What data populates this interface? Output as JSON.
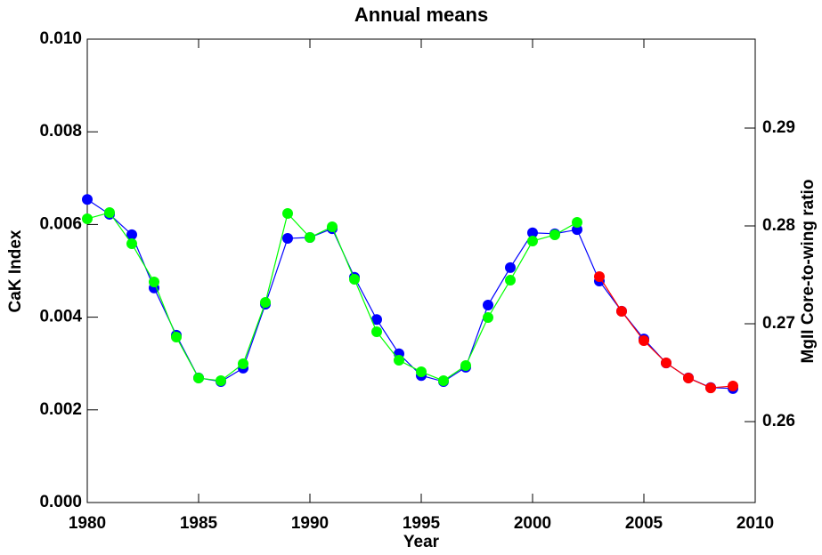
{
  "chart_data": {
    "type": "line",
    "title": "Annual means",
    "xlabel": "Year",
    "ylabel": "CaK Index",
    "y2label": "MgII Core-to-wing ratio",
    "x": [
      1980,
      1981,
      1982,
      1983,
      1984,
      1985,
      1986,
      1987,
      1988,
      1989,
      1990,
      1991,
      1992,
      1993,
      1994,
      1995,
      1996,
      1997,
      1998,
      1999,
      2000,
      2001,
      2002,
      2003,
      2004,
      2005,
      2006,
      2007,
      2008,
      2009
    ],
    "series": [
      {
        "color": "#0000ff",
        "values": [
          0.00654,
          0.00622,
          0.00578,
          0.00463,
          0.00361,
          0.00269,
          0.00261,
          0.0029,
          0.00428,
          0.0057,
          0.00572,
          0.00591,
          0.00486,
          0.00395,
          0.00321,
          0.00274,
          0.00261,
          0.00292,
          0.00426,
          0.00507,
          0.00582,
          0.0058,
          0.00589,
          0.00478,
          0.00413,
          0.00353,
          0.00301,
          0.00269,
          0.00248,
          0.00246
        ]
      },
      {
        "color": "#00ff00",
        "axis": "y2",
        "values": [
          0.28073,
          0.28136,
          0.27818,
          0.27427,
          0.26864,
          0.26445,
          0.26418,
          0.26591,
          0.27218,
          0.28127,
          0.27882,
          0.27991,
          0.27455,
          0.26918,
          0.26627,
          0.26509,
          0.26418,
          0.26573,
          0.27064,
          0.27445,
          0.27845,
          0.27909,
          0.28036,
          null,
          null,
          null,
          null,
          null,
          null,
          null
        ]
      },
      {
        "color": "#ff0000",
        "axis": "y2",
        "values": [
          null,
          null,
          null,
          null,
          null,
          null,
          null,
          null,
          null,
          null,
          null,
          null,
          null,
          null,
          null,
          null,
          null,
          null,
          null,
          null,
          null,
          null,
          null,
          0.27482,
          0.27127,
          0.26827,
          0.266,
          0.26445,
          0.26345,
          0.26364
        ]
      }
    ],
    "xlim": [
      1980,
      2010
    ],
    "xticks": [
      1980,
      1985,
      1990,
      1995,
      2000,
      2005,
      2010
    ],
    "ylim": [
      0,
      0.01
    ],
    "yticks": [
      {
        "value": 0,
        "label": "0.000"
      },
      {
        "value": 0.002,
        "label": "0.002"
      },
      {
        "value": 0.004,
        "label": "0.004"
      },
      {
        "value": 0.006,
        "label": "0.006"
      },
      {
        "value": 0.008,
        "label": "0.008"
      },
      {
        "value": 0.01,
        "label": "0.010"
      }
    ],
    "y2lim": [
      0.25173,
      0.29909
    ],
    "y2ticks": [
      0.26,
      0.27,
      0.28,
      0.29
    ]
  }
}
